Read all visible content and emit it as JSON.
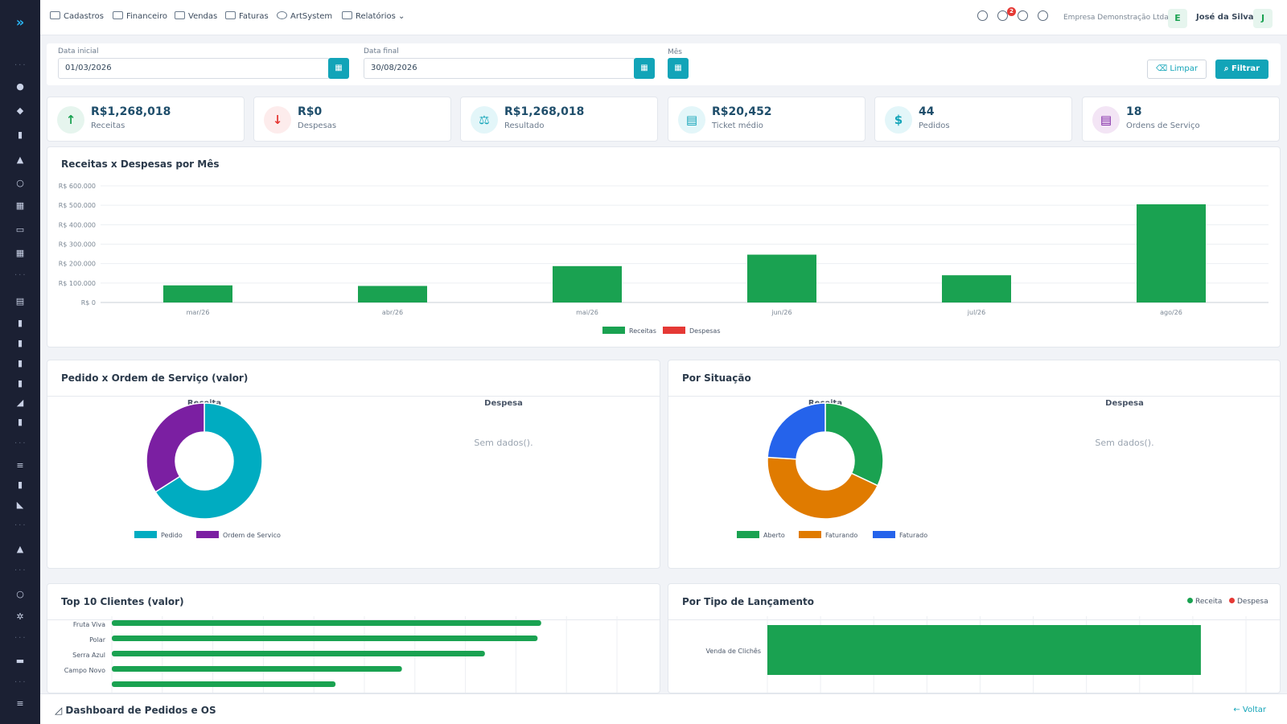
{
  "topbar": {
    "menu": [
      {
        "label": "Cadastros",
        "icon": "id-card-icon"
      },
      {
        "label": "Financeiro",
        "icon": "wallet-icon"
      },
      {
        "label": "Vendas",
        "icon": "cart-icon"
      },
      {
        "label": "Faturas",
        "icon": "invoice-icon"
      },
      {
        "label": "ArtSystem",
        "icon": "palette-icon"
      },
      {
        "label": "Relatórios",
        "icon": "chart-icon"
      }
    ],
    "notifications": "2",
    "company": "Empresa Demonstração Ltda",
    "company_initial": "E",
    "user": "José da Silva",
    "user_initial": "J"
  },
  "filters": {
    "start_label": "Data inicial",
    "start_value": "01/03/2026",
    "end_label": "Data final",
    "end_value": "30/08/2026",
    "month_label": "Mês",
    "clear_label": "Limpar",
    "filter_label": "Filtrar"
  },
  "kpis": [
    {
      "value": "R$1,268,018",
      "label": "Receitas",
      "icon": "arrow-up-icon",
      "color": "#1aa251"
    },
    {
      "value": "R$0",
      "label": "Despesas",
      "icon": "arrow-down-icon",
      "color": "#e53935"
    },
    {
      "value": "R$1,268,018",
      "label": "Resultado",
      "icon": "scale-icon",
      "color": "#12a4b8"
    },
    {
      "value": "R$20,452",
      "label": "Ticket médio",
      "icon": "receipt-icon",
      "color": "#12a4b8"
    },
    {
      "value": "44",
      "label": "Pedidos",
      "icon": "document-icon",
      "color": "#12a4b8"
    },
    {
      "value": "18",
      "label": "Ordens de Serviço",
      "icon": "clipboard-icon",
      "color": "#7b1fa2"
    }
  ],
  "bar_panel": {
    "title": "Receitas x Despesas por Mês"
  },
  "pedido_os_panel": {
    "title": "Pedido x Ordem de Serviço (valor)",
    "left_sub": "Receita",
    "right_sub": "Despesa",
    "no_data": "Sem dados()."
  },
  "situacao_panel": {
    "title": "Por Situação",
    "left_sub": "Receita",
    "right_sub": "Despesa",
    "no_data": "Sem dados()."
  },
  "top10_panel": {
    "title": "Top 10 Clientes (valor)"
  },
  "tipo_panel": {
    "title": "Por Tipo de Lançamento",
    "legend_receita": "Receita",
    "legend_despesa": "Despesa"
  },
  "footer": {
    "title": "Dashboard de Pedidos e OS",
    "back": "Voltar"
  },
  "colors": {
    "receitas": "#1aa251",
    "despesas": "#e53935",
    "pedido": "#00acc1",
    "os": "#7b1fa2",
    "aberto": "#1aa251",
    "faturando": "#e07b00",
    "faturado": "#2563eb",
    "accent": "#12a4b8"
  },
  "chart_data": [
    {
      "type": "bar",
      "title": "Receitas x Despesas por Mês",
      "categories": [
        "mar/26",
        "abr/26",
        "mai/26",
        "jun/26",
        "jul/26",
        "ago/26"
      ],
      "series": [
        {
          "name": "Receitas",
          "values": [
            88000,
            85000,
            187000,
            246000,
            140000,
            505000
          ]
        },
        {
          "name": "Despesas",
          "values": [
            0,
            0,
            0,
            0,
            0,
            0
          ]
        }
      ],
      "ylim": [
        0,
        600000
      ],
      "yticks": [
        "R$ 0",
        "R$ 100.000",
        "R$ 200.000",
        "R$ 300.000",
        "R$ 400.000",
        "R$ 500.000",
        "R$ 600.000"
      ],
      "grid": true,
      "legend": "bottom"
    },
    {
      "type": "pie",
      "title": "Receita",
      "labels": [
        "Pedido",
        "Ordem de Servico"
      ],
      "values": [
        66,
        34
      ],
      "legend": "bottom"
    },
    {
      "type": "pie",
      "title": "Receita",
      "labels": [
        "Aberto",
        "Faturando",
        "Faturado"
      ],
      "values": [
        32,
        44,
        24
      ],
      "legend": "bottom"
    },
    {
      "type": "bar",
      "orientation": "horizontal",
      "categories": [
        "Fruta Viva",
        "Polar",
        "Serra Azul",
        "Campo Novo",
        ""
      ],
      "values": [
        595,
        590,
        517,
        402,
        310
      ]
    },
    {
      "type": "bar",
      "orientation": "horizontal",
      "categories": [
        "Venda de Clichês"
      ],
      "series": [
        {
          "name": "Receita",
          "values": [
            1268018
          ]
        },
        {
          "name": "Despesa",
          "values": [
            0
          ]
        }
      ],
      "legend": "top-right"
    }
  ]
}
